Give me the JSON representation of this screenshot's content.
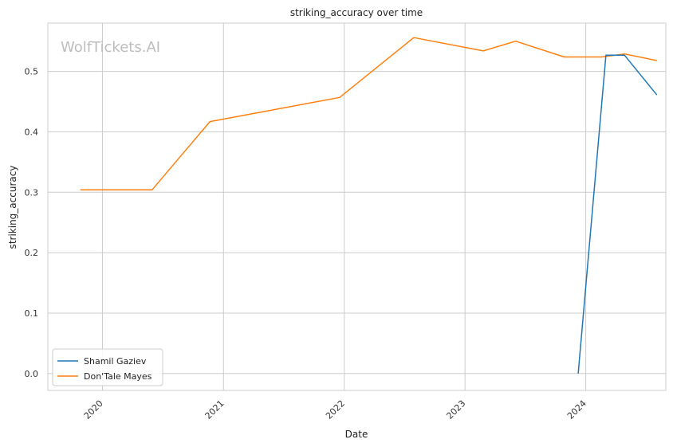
{
  "chart_data": {
    "type": "line",
    "title": "striking_accuracy over time",
    "xlabel": "Date",
    "ylabel": "striking_accuracy",
    "watermark": "WolfTickets.AI",
    "x_ticks": [
      "2020",
      "2021",
      "2022",
      "2023",
      "2024"
    ],
    "y_ticks": [
      "0.0",
      "0.1",
      "0.2",
      "0.3",
      "0.4",
      "0.5"
    ],
    "ylim": [
      -0.028,
      0.58
    ],
    "xlim": [
      "2019-07-20",
      "2024-08-30"
    ],
    "grid": true,
    "legend_position": "lower-left",
    "series": [
      {
        "name": "Shamil Gaziev",
        "color": "#1f77b4",
        "points": [
          {
            "x": "2023-12-09",
            "y": 0.0
          },
          {
            "x": "2024-03-02",
            "y": 0.527
          },
          {
            "x": "2024-04-27",
            "y": 0.527
          },
          {
            "x": "2024-08-03",
            "y": 0.461
          }
        ]
      },
      {
        "name": "Don'Tale Mayes",
        "color": "#ff7f0e",
        "points": [
          {
            "x": "2019-10-26",
            "y": 0.304
          },
          {
            "x": "2020-05-30",
            "y": 0.304
          },
          {
            "x": "2020-11-21",
            "y": 0.417
          },
          {
            "x": "2021-12-18",
            "y": 0.457
          },
          {
            "x": "2022-07-30",
            "y": 0.556
          },
          {
            "x": "2023-02-25",
            "y": 0.534
          },
          {
            "x": "2023-06-03",
            "y": 0.55
          },
          {
            "x": "2023-10-28",
            "y": 0.524
          },
          {
            "x": "2024-02-17",
            "y": 0.524
          },
          {
            "x": "2024-04-27",
            "y": 0.529
          },
          {
            "x": "2024-08-03",
            "y": 0.518
          }
        ]
      }
    ]
  }
}
